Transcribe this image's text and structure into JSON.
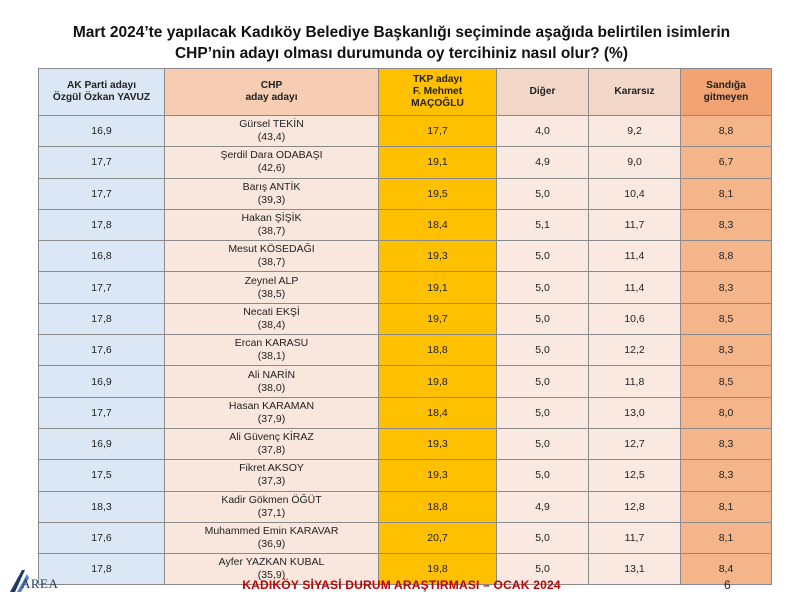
{
  "title_line1": "Mart 2024’te yapılacak Kadıköy Belediye Başkanlığı seçiminde aşağıda belirtilen isimlerin",
  "title_line2": "CHP’nin adayı olması durumunda oy tercihiniz nasıl olur? (%)",
  "headers": {
    "ak_line1": "AK Parti adayı",
    "ak_line2": "Özgül Özkan YAVUZ",
    "chp_line1": "CHP",
    "chp_line2": "aday adayı",
    "tkp_line1": "TKP adayı",
    "tkp_line2": "F. Mehmet",
    "tkp_line3": "MAÇOĞLU",
    "diger": "Diğer",
    "kararsiz": "Kararsız",
    "sandiga_line1": "Sandığa",
    "sandiga_line2": "gitmeyen"
  },
  "rows": [
    {
      "ak": "16,9",
      "chp_name": "Gürsel TEKİN",
      "chp_val": "(43,4)",
      "tkp": "17,7",
      "diger": "4,0",
      "kararsiz": "9,2",
      "sandiga": "8,8"
    },
    {
      "ak": "17,7",
      "chp_name": "Şerdil Dara ODABAŞI",
      "chp_val": "(42,6)",
      "tkp": "19,1",
      "diger": "4,9",
      "kararsiz": "9,0",
      "sandiga": "6,7"
    },
    {
      "ak": "17,7",
      "chp_name": "Barış ANTİK",
      "chp_val": "(39,3)",
      "tkp": "19,5",
      "diger": "5,0",
      "kararsiz": "10,4",
      "sandiga": "8,1"
    },
    {
      "ak": "17,8",
      "chp_name": "Hakan ŞİŞİK",
      "chp_val": "(38,7)",
      "tkp": "18,4",
      "diger": "5,1",
      "kararsiz": "11,7",
      "sandiga": "8,3"
    },
    {
      "ak": "16,8",
      "chp_name": "Mesut KÖSEDAĞI",
      "chp_val": "(38,7)",
      "tkp": "19,3",
      "diger": "5,0",
      "kararsiz": "11,4",
      "sandiga": "8,8"
    },
    {
      "ak": "17,7",
      "chp_name": "Zeynel ALP",
      "chp_val": "(38,5)",
      "tkp": "19,1",
      "diger": "5,0",
      "kararsiz": "11,4",
      "sandiga": "8,3"
    },
    {
      "ak": "17,8",
      "chp_name": "Necati EKŞİ",
      "chp_val": "(38,4)",
      "tkp": "19,7",
      "diger": "5,0",
      "kararsiz": "10,6",
      "sandiga": "8,5"
    },
    {
      "ak": "17,6",
      "chp_name": "Ercan KARASU",
      "chp_val": "(38,1)",
      "tkp": "18,8",
      "diger": "5,0",
      "kararsiz": "12,2",
      "sandiga": "8,3"
    },
    {
      "ak": "16,9",
      "chp_name": "Ali NARİN",
      "chp_val": "(38,0)",
      "tkp": "19,8",
      "diger": "5,0",
      "kararsiz": "11,8",
      "sandiga": "8,5"
    },
    {
      "ak": "17,7",
      "chp_name": "Hasan KARAMAN",
      "chp_val": "(37,9)",
      "tkp": "18,4",
      "diger": "5,0",
      "kararsiz": "13,0",
      "sandiga": "8,0"
    },
    {
      "ak": "16,9",
      "chp_name": "Ali Güvenç KİRAZ",
      "chp_val": "(37,8)",
      "tkp": "19,3",
      "diger": "5,0",
      "kararsiz": "12,7",
      "sandiga": "8,3"
    },
    {
      "ak": "17,5",
      "chp_name": "Fikret AKSOY",
      "chp_val": "(37,3)",
      "tkp": "19,3",
      "diger": "5,0",
      "kararsiz": "12,5",
      "sandiga": "8,3"
    },
    {
      "ak": "18,3",
      "chp_name": "Kadir Gökmen ÖĞÜT",
      "chp_val": "(37,1)",
      "tkp": "18,8",
      "diger": "4,9",
      "kararsiz": "12,8",
      "sandiga": "8,1"
    },
    {
      "ak": "17,6",
      "chp_name": "Muhammed Emin KARAVAR",
      "chp_val": "(36,9)",
      "tkp": "20,7",
      "diger": "5,0",
      "kararsiz": "11,7",
      "sandiga": "8,1"
    },
    {
      "ak": "17,8",
      "chp_name": "Ayfer YAZKAN KUBAL",
      "chp_val": "(35,9)",
      "tkp": "19,8",
      "diger": "5,0",
      "kararsiz": "13,1",
      "sandiga": "8,4"
    }
  ],
  "footer": "KADIKÖY SİYASİ DURUM ARAŞTIRMASI – OCAK 2024",
  "page_number": "6",
  "logo_text": "AREA",
  "colors": {
    "ak_col": "#dbe7f5",
    "chp_col": "#f9e7dd",
    "tkp_col": "#ffc000",
    "neutral_col": "#f9e9e1",
    "sandiga_col": "#f4b58a",
    "footer_red": "#c00000"
  }
}
